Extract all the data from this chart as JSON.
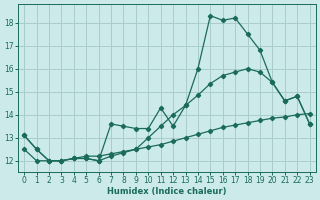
{
  "xlabel": "Humidex (Indice chaleur)",
  "bg_color": "#cceaea",
  "grid_color": "#aacccc",
  "line_color": "#1a6b5a",
  "spine_color": "#1a6b5a",
  "xlim": [
    -0.5,
    23.5
  ],
  "ylim": [
    11.5,
    18.8
  ],
  "xticks": [
    0,
    1,
    2,
    3,
    4,
    5,
    6,
    7,
    8,
    9,
    10,
    11,
    12,
    13,
    14,
    15,
    16,
    17,
    18,
    19,
    20,
    21,
    22,
    23
  ],
  "yticks": [
    12,
    13,
    14,
    15,
    16,
    17,
    18
  ],
  "tick_labelsize": 5.5,
  "line1_x": [
    0,
    1,
    2,
    3,
    4,
    5,
    6,
    7,
    8,
    9,
    10,
    11,
    12,
    13,
    14,
    15,
    16,
    17,
    18,
    19,
    20,
    21,
    22,
    23
  ],
  "line1_y": [
    13.1,
    12.5,
    12.0,
    12.0,
    12.1,
    12.1,
    12.0,
    13.6,
    13.5,
    13.4,
    13.4,
    14.3,
    13.5,
    14.4,
    16.0,
    18.3,
    18.1,
    18.2,
    17.5,
    16.8,
    15.4,
    14.6,
    14.8,
    13.6
  ],
  "line2_x": [
    0,
    1,
    2,
    3,
    4,
    5,
    6,
    7,
    8,
    9,
    10,
    11,
    12,
    13,
    14,
    15,
    16,
    17,
    18,
    19,
    20,
    21,
    22,
    23
  ],
  "line2_y": [
    12.5,
    12.0,
    12.0,
    12.0,
    12.1,
    12.2,
    12.2,
    12.3,
    12.4,
    12.5,
    12.6,
    12.7,
    12.85,
    13.0,
    13.15,
    13.3,
    13.45,
    13.55,
    13.65,
    13.75,
    13.85,
    13.9,
    14.0,
    14.05
  ],
  "line3_x": [
    0,
    1,
    2,
    3,
    4,
    5,
    6,
    7,
    8,
    9,
    10,
    11,
    12,
    13,
    14,
    15,
    16,
    17,
    18,
    19,
    20,
    21,
    22,
    23
  ],
  "line3_y": [
    13.1,
    12.5,
    12.0,
    12.0,
    12.1,
    12.1,
    12.0,
    12.2,
    12.35,
    12.5,
    13.0,
    13.5,
    14.0,
    14.4,
    14.85,
    15.35,
    15.7,
    15.85,
    16.0,
    15.85,
    15.4,
    14.6,
    14.8,
    13.6
  ]
}
